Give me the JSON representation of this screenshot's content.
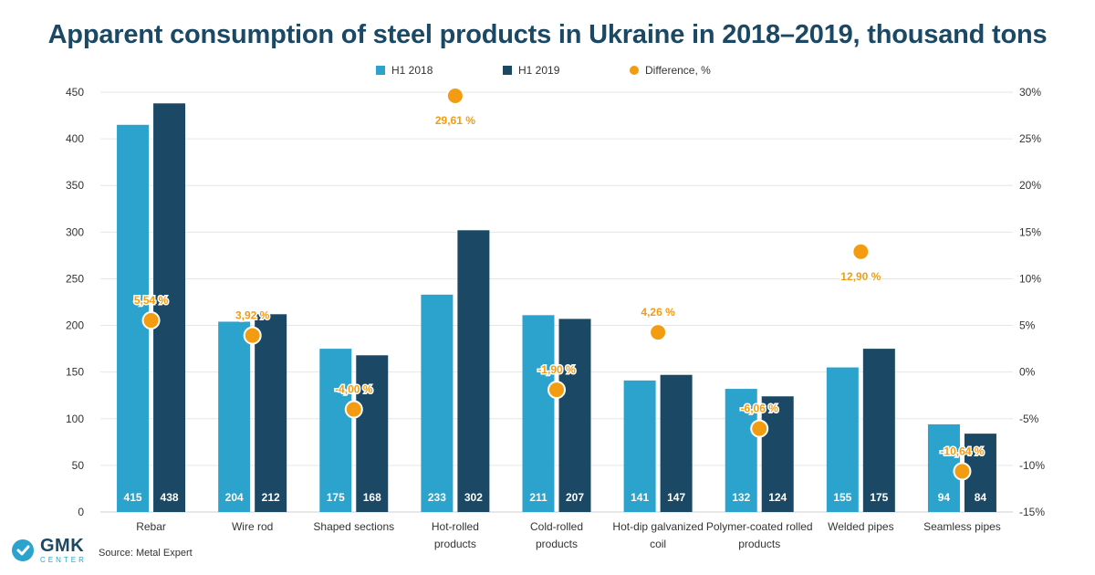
{
  "title": "Apparent consumption of steel products in Ukraine in 2018–2019, thousand tons",
  "source": "Source: Metal Expert",
  "logo": {
    "name": "GMK",
    "sub": "CENTER"
  },
  "colors": {
    "h1_2018": "#2ba3cc",
    "h1_2019": "#1b4965",
    "difference": "#f39c12",
    "label": "#f39c12"
  },
  "chart_data": {
    "type": "bar",
    "categories": [
      "Rebar",
      "Wire rod",
      "Shaped sections",
      "Hot-rolled products",
      "Cold-rolled products",
      "Hot-dip galvanized coil",
      "Polymer-coated rolled products",
      "Welded pipes",
      "Seamless pipes"
    ],
    "category_label_lines": [
      [
        "Rebar"
      ],
      [
        "Wire rod"
      ],
      [
        "Shaped sections"
      ],
      [
        "Hot-rolled",
        "products"
      ],
      [
        "Cold-rolled",
        "products"
      ],
      [
        "Hot-dip galvanized",
        "coil"
      ],
      [
        "Polymer-coated rolled",
        "products"
      ],
      [
        "Welded pipes"
      ],
      [
        "Seamless pipes"
      ]
    ],
    "series": [
      {
        "name": "H1 2018",
        "values": [
          415,
          204,
          175,
          233,
          211,
          141,
          132,
          155,
          94
        ],
        "labels": [
          "415",
          "204",
          "175",
          "233",
          "211",
          "141",
          "132",
          "155",
          "94"
        ]
      },
      {
        "name": "H1 2019",
        "values": [
          438,
          212,
          168,
          302,
          207,
          147,
          124,
          175,
          84
        ],
        "labels": [
          "438",
          "212",
          "168",
          "302",
          "207",
          "147",
          "124",
          "175",
          "84"
        ]
      }
    ],
    "difference": {
      "name": "Difference, %",
      "values": [
        5.54,
        3.92,
        -4.0,
        29.61,
        -1.9,
        4.26,
        -6.06,
        12.9,
        -10.64
      ],
      "labels": [
        "5,54 %",
        "3,92 %",
        "-4,00 %",
        "29,61 %",
        "-1,90 %",
        "4,26 %",
        "-6,06 %",
        "12,90 %",
        "-10,64 %"
      ],
      "label_position": [
        "above",
        "above",
        "above",
        "below",
        "above",
        "above",
        "above",
        "below",
        "above"
      ]
    },
    "y_left": {
      "ylim": [
        0,
        450
      ],
      "ticks": [
        "0",
        "50",
        "100",
        "150",
        "200",
        "250",
        "300",
        "350",
        "400",
        "450"
      ]
    },
    "y_right": {
      "ylim": [
        -15,
        30
      ],
      "ticks": [
        "-15%",
        "-10%",
        "-5%",
        "0%",
        "5%",
        "10%",
        "15%",
        "20%",
        "25%",
        "30%"
      ]
    },
    "grid": true,
    "legend_position": "top-center"
  }
}
